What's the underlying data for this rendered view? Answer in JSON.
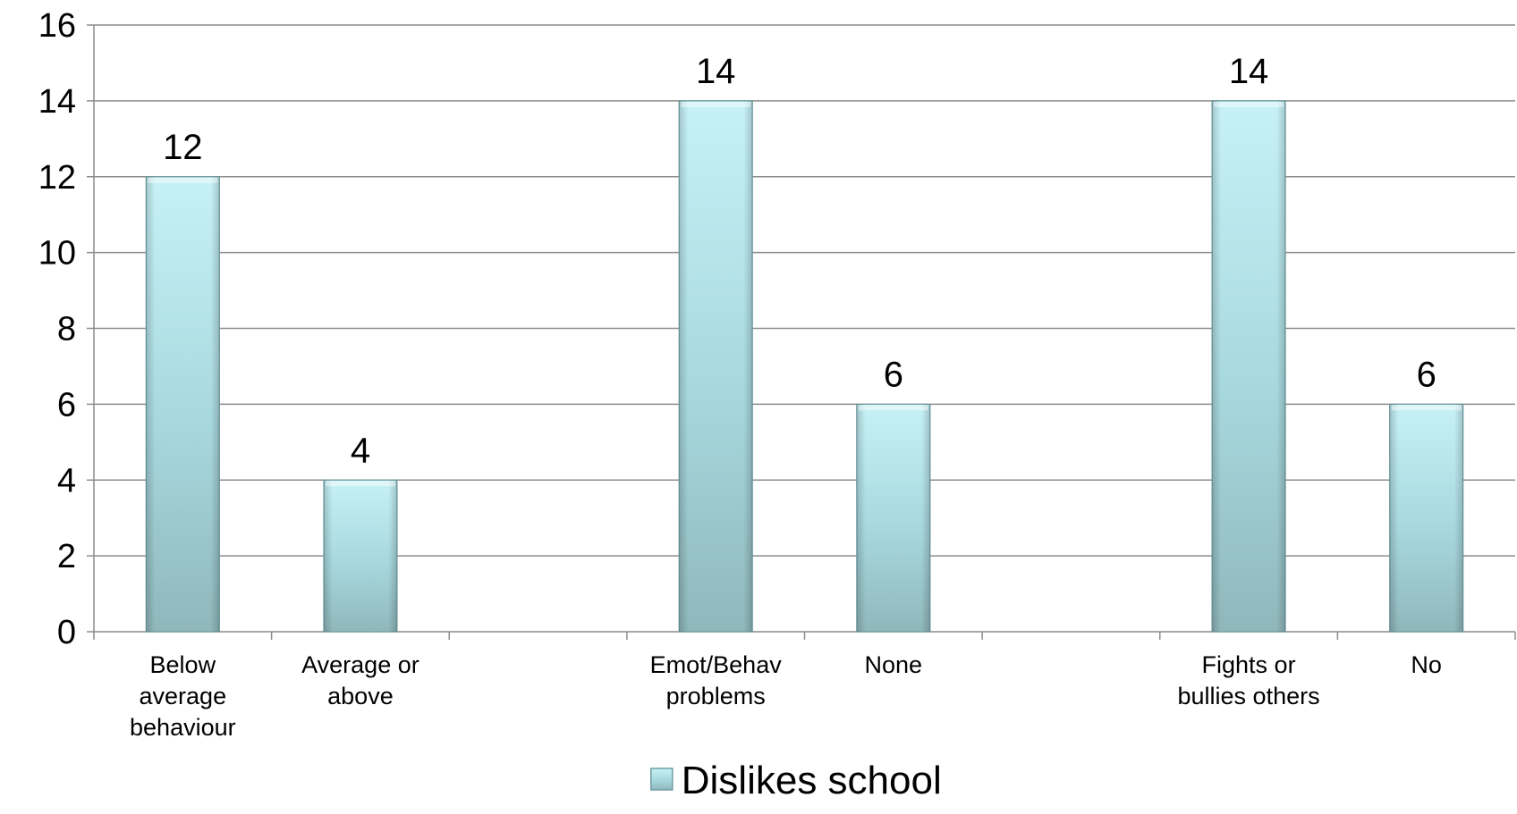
{
  "chart_data": {
    "type": "bar",
    "categories": [
      [
        "Below",
        "average",
        "behaviour"
      ],
      [
        "Average or",
        "above"
      ],
      [],
      [
        "Emot/Behav",
        "problems"
      ],
      [
        "None"
      ],
      [],
      [
        "Fights or",
        "bullies others"
      ],
      [
        "No"
      ]
    ],
    "series": [
      {
        "name": "Dislikes school",
        "values": [
          12,
          4,
          null,
          14,
          6,
          null,
          14,
          6
        ]
      }
    ],
    "data_labels": [
      "12",
      "4",
      "",
      "14",
      "6",
      "",
      "14",
      "6"
    ],
    "y_ticks": [
      "0",
      "2",
      "4",
      "6",
      "8",
      "10",
      "12",
      "14",
      "16"
    ],
    "ylim": [
      0,
      16
    ],
    "grid": true,
    "legend_position": "bottom",
    "colors": {
      "bar_light": "#c6f1f6",
      "bar_mid": "#a7d8de",
      "bar_dark": "#8fb7bb",
      "bar_edge": "#6f9ea2",
      "gridline": "#8c8c8c",
      "axis": "#8c8c8c"
    }
  }
}
